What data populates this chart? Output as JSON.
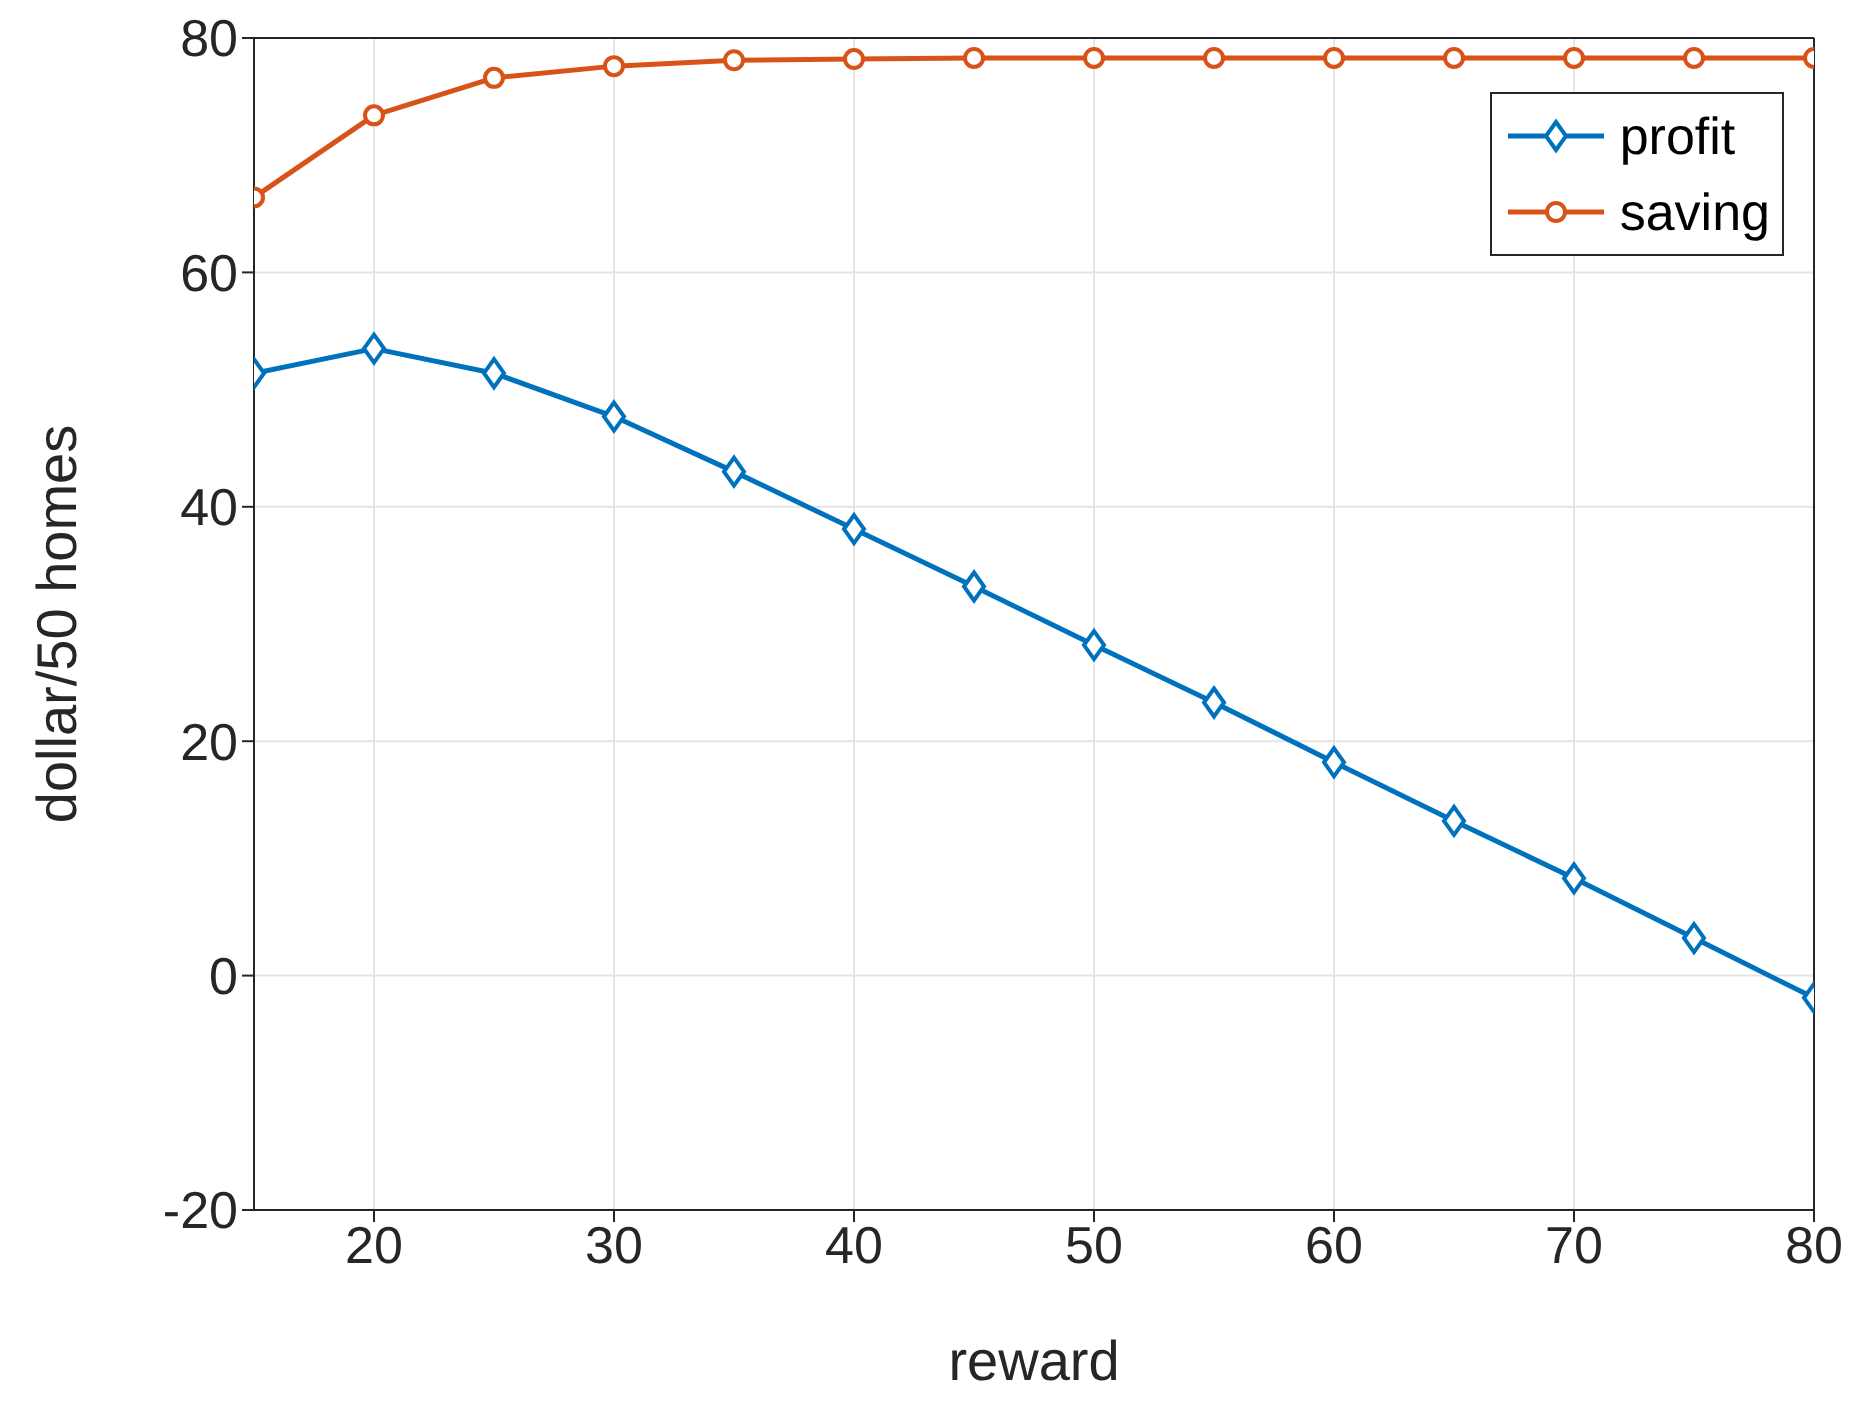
{
  "chart_data": {
    "type": "line",
    "xlabel": "reward",
    "ylabel": "dollar/50 homes",
    "x": [
      15,
      20,
      25,
      30,
      35,
      40,
      45,
      50,
      55,
      60,
      65,
      70,
      75,
      80
    ],
    "series": [
      {
        "name": "profit",
        "color": "#0072bd",
        "marker": "diamond",
        "values": [
          51.4,
          53.5,
          51.4,
          47.7,
          43.0,
          38.1,
          33.2,
          28.2,
          23.3,
          18.2,
          13.2,
          8.3,
          3.2,
          -1.9
        ]
      },
      {
        "name": "saving",
        "color": "#d95319",
        "marker": "circle",
        "values": [
          66.4,
          73.4,
          76.6,
          77.6,
          78.1,
          78.2,
          78.3,
          78.3,
          78.3,
          78.3,
          78.3,
          78.3,
          78.3,
          78.3
        ]
      }
    ],
    "xlim": [
      15,
      80
    ],
    "xticks": [
      20,
      30,
      40,
      50,
      60,
      70,
      80
    ],
    "ylim": [
      -20,
      80
    ],
    "yticks": [
      -20,
      0,
      20,
      40,
      60,
      80
    ],
    "grid": true,
    "legend": "top right",
    "line_style": "solid"
  }
}
